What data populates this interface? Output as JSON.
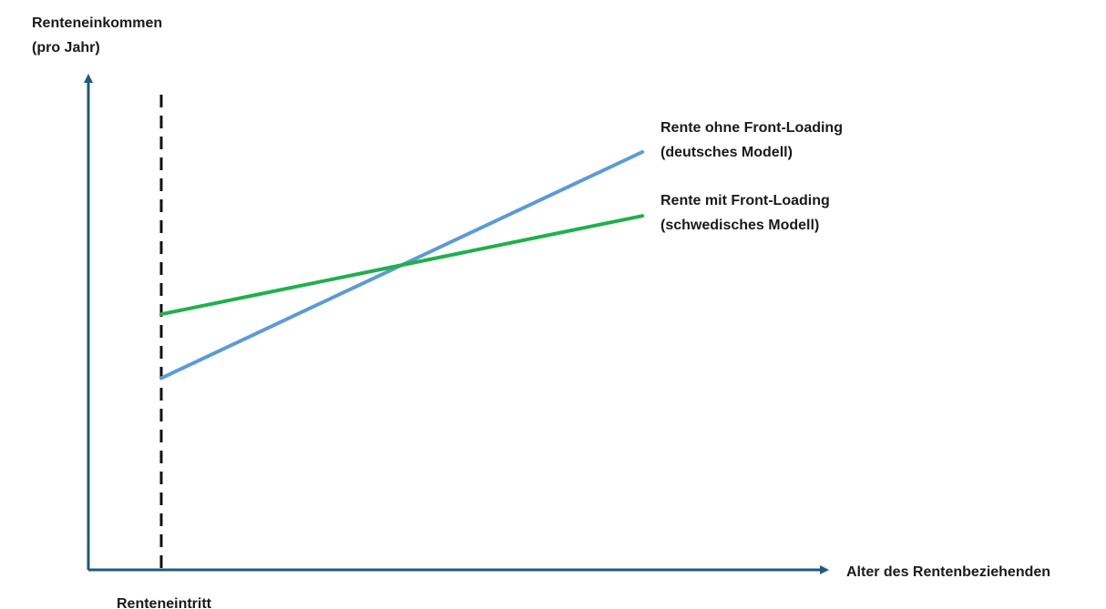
{
  "chart_data": {
    "type": "line",
    "title": "",
    "ylabel": [
      "Renteneinkommen",
      "(pro Jahr)"
    ],
    "xlabel": "Alter des Rentenbeziehenden",
    "xlim": [
      0,
      10
    ],
    "ylim": [
      0,
      10
    ],
    "grid": false,
    "marker": {
      "label": "Renteneintritt",
      "x": 1.0
    },
    "series": [
      {
        "name": [
          "Rente ohne Front-Loading",
          "(deutsches Modell)"
        ],
        "color": "#5b9bd5",
        "x": [
          1.0,
          7.6
        ],
        "y": [
          3.9,
          8.5
        ]
      },
      {
        "name": [
          "Rente mit Front-Loading",
          "(schwedisches Modell)"
        ],
        "color": "#1fb04c",
        "x": [
          1.0,
          7.6
        ],
        "y": [
          5.2,
          7.2
        ]
      }
    ],
    "axis_color": "#1f5a7a"
  }
}
